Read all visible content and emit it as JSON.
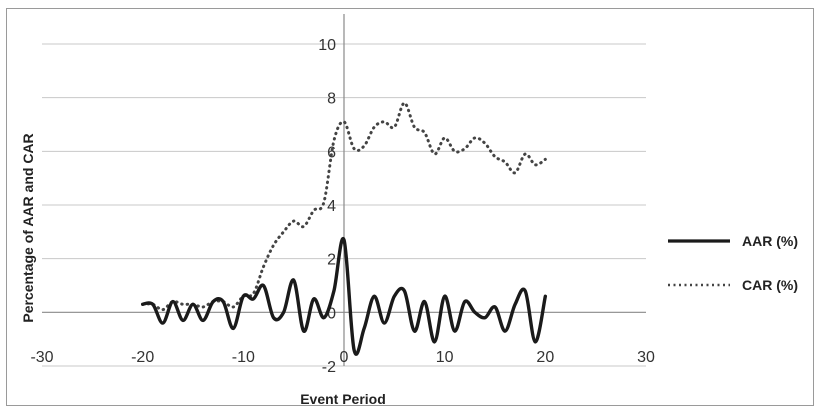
{
  "chart_data": {
    "type": "line",
    "title": "",
    "xlabel": "Event Period",
    "ylabel": "Percentage of AAR and CAR",
    "xlim": [
      -30,
      30
    ],
    "ylim": [
      -2,
      10
    ],
    "x_ticks": [
      -30,
      -20,
      -10,
      0,
      10,
      20,
      30
    ],
    "y_ticks": [
      -2,
      0,
      2,
      4,
      6,
      8,
      10
    ],
    "x_tick_labels": [
      "-30",
      "-20",
      "-10",
      "0",
      "10",
      "20",
      "30"
    ],
    "y_tick_labels": [
      "-2",
      "0",
      "2",
      "4",
      "6",
      "8",
      "10"
    ],
    "grid": "horizontal",
    "legend": "right",
    "x": [
      -20,
      -19,
      -18,
      -17,
      -16,
      -15,
      -14,
      -13,
      -12,
      -11,
      -10,
      -9,
      -8,
      -7,
      -6,
      -5,
      -4,
      -3,
      -2,
      -1,
      0,
      1,
      2,
      3,
      4,
      5,
      6,
      7,
      8,
      9,
      10,
      11,
      12,
      13,
      14,
      15,
      16,
      17,
      18,
      19,
      20
    ],
    "series": [
      {
        "name": "AAR (%)",
        "style": "solid",
        "color": "#1a1a1a",
        "values": [
          0.3,
          0.3,
          -0.4,
          0.4,
          -0.3,
          0.3,
          -0.3,
          0.4,
          0.4,
          -0.6,
          0.6,
          0.5,
          1.0,
          -0.2,
          0.0,
          1.2,
          -0.7,
          0.5,
          -0.2,
          0.8,
          2.7,
          -1.4,
          -0.6,
          0.6,
          -0.4,
          0.6,
          0.8,
          -0.7,
          0.4,
          -1.1,
          0.6,
          -0.7,
          0.4,
          0.0,
          -0.2,
          0.2,
          -0.7,
          0.3,
          0.8,
          -1.1,
          0.6
        ]
      },
      {
        "name": "CAR (%)",
        "style": "dotted",
        "color": "#444444",
        "values": [
          0.3,
          0.3,
          0.1,
          0.4,
          0.3,
          0.3,
          0.2,
          0.4,
          0.4,
          0.2,
          0.6,
          0.7,
          1.7,
          2.5,
          3.0,
          3.4,
          3.2,
          3.8,
          4.1,
          6.4,
          7.1,
          6.1,
          6.2,
          6.9,
          7.1,
          6.9,
          7.8,
          6.9,
          6.7,
          5.9,
          6.5,
          6.0,
          6.1,
          6.5,
          6.3,
          5.8,
          5.6,
          5.2,
          5.9,
          5.5,
          5.7
        ]
      }
    ]
  }
}
